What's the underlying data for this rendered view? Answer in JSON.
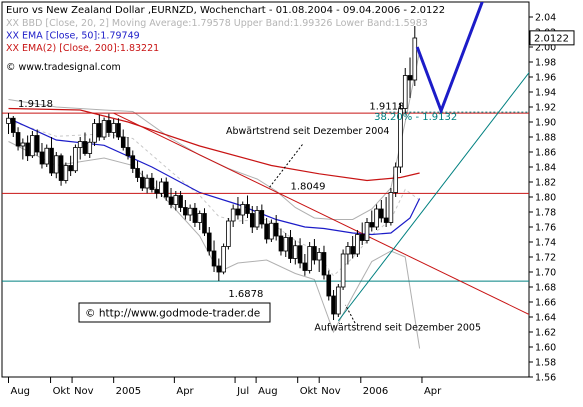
{
  "chart_data": {
    "type": "candlestick",
    "title": "Euro vs New Zealand Dollar ,EURNZD, Wochenchart - 01.08.2004 - 09.04.2006 - 2.0122",
    "legend": [
      {
        "text": "XX BBD [Close, 20, 2] Moving Average:1.79578 Upper Band:1.99326 Lower Band:1.5983",
        "color": "#b4b4b4"
      },
      {
        "text": "XX EMA [Close, 50]:1.79749",
        "color": "#1c1cc8"
      },
      {
        "text": "XX EMA(2) [Close, 200]:1.83221",
        "color": "#c81414"
      }
    ],
    "source_text": "© www.tradesignal.com",
    "watermark_text": "© http://www.godmode-trader.de",
    "price_label": "2.0122",
    "ylim": [
      1.56,
      2.06
    ],
    "yticks": [
      2.04,
      2.02,
      2.0,
      1.98,
      1.96,
      1.94,
      1.92,
      1.9,
      1.88,
      1.86,
      1.84,
      1.82,
      1.8,
      1.78,
      1.76,
      1.74,
      1.72,
      1.7,
      1.68,
      1.66,
      1.64,
      1.62,
      1.6,
      1.58,
      1.56
    ],
    "xticks": [
      {
        "label": "Aug",
        "w": 0
      },
      {
        "label": "Okt",
        "w": 8.8
      },
      {
        "label": "Nov",
        "w": 13.3
      },
      {
        "label": "2005",
        "w": 22
      },
      {
        "label": "Apr",
        "w": 34.7
      },
      {
        "label": "Jul",
        "w": 47.4
      },
      {
        "label": "Aug",
        "w": 51.8
      },
      {
        "label": "Okt",
        "w": 60.5
      },
      {
        "label": "Nov",
        "w": 65
      },
      {
        "label": "2006",
        "w": 73.7
      },
      {
        "label": "Apr",
        "w": 86.5
      }
    ],
    "annotations": [
      {
        "text": "1.9118",
        "w": 2,
        "y": 1.92,
        "color": "#000000"
      },
      {
        "text": "1.9118",
        "w": 75.5,
        "y": 1.917,
        "color": "#000000"
      },
      {
        "text": "38.20% - 1.9132",
        "w": 76.5,
        "y": 1.903,
        "color": "#008080"
      },
      {
        "text": "1.8049",
        "w": 59,
        "y": 1.81,
        "color": "#000000"
      },
      {
        "text": "1.6878",
        "w": 46,
        "y": 1.667,
        "color": "#000000"
      },
      {
        "text": "Abwärtstrend seit Dezember 2004",
        "w": 45.5,
        "y": 1.884,
        "color": "#000000"
      },
      {
        "text": "Aufwärtstrend seit Dezember 2005",
        "w": 64,
        "y": 1.622,
        "color": "#000000"
      }
    ],
    "hlines": [
      {
        "y": 1.9118,
        "color": "#c81414"
      },
      {
        "y": 1.8049,
        "color": "#c81414"
      },
      {
        "y": 1.6878,
        "color": "#008080"
      }
    ],
    "trendlines": [
      {
        "name": "downtrend",
        "color": "#c81414",
        "from": [
          22,
          1.9118
        ],
        "to": [
          110,
          1.64
        ]
      },
      {
        "name": "uptrend",
        "color": "#008080",
        "from": [
          69,
          1.635
        ],
        "to": [
          110,
          1.975
        ]
      }
    ],
    "projection": {
      "color": "#1c1cc8",
      "points": [
        [
          85.5,
          2.0
        ],
        [
          90.5,
          1.915
        ],
        [
          100,
          2.075
        ]
      ]
    },
    "candles": [
      {
        "w": 0,
        "o": 1.898,
        "h": 1.912,
        "l": 1.884,
        "c": 1.905
      },
      {
        "w": 1,
        "o": 1.905,
        "h": 1.908,
        "l": 1.88,
        "c": 1.886
      },
      {
        "w": 2,
        "o": 1.886,
        "h": 1.893,
        "l": 1.862,
        "c": 1.868
      },
      {
        "w": 3,
        "o": 1.868,
        "h": 1.878,
        "l": 1.85,
        "c": 1.872
      },
      {
        "w": 4,
        "o": 1.872,
        "h": 1.882,
        "l": 1.848,
        "c": 1.855
      },
      {
        "w": 5,
        "o": 1.855,
        "h": 1.888,
        "l": 1.852,
        "c": 1.882
      },
      {
        "w": 6,
        "o": 1.882,
        "h": 1.89,
        "l": 1.855,
        "c": 1.86
      },
      {
        "w": 7,
        "o": 1.86,
        "h": 1.872,
        "l": 1.838,
        "c": 1.844
      },
      {
        "w": 8,
        "o": 1.844,
        "h": 1.87,
        "l": 1.84,
        "c": 1.865
      },
      {
        "w": 9,
        "o": 1.865,
        "h": 1.88,
        "l": 1.828,
        "c": 1.832
      },
      {
        "w": 10,
        "o": 1.832,
        "h": 1.86,
        "l": 1.825,
        "c": 1.855
      },
      {
        "w": 11,
        "o": 1.855,
        "h": 1.858,
        "l": 1.815,
        "c": 1.822
      },
      {
        "w": 12,
        "o": 1.822,
        "h": 1.846,
        "l": 1.818,
        "c": 1.842
      },
      {
        "w": 13,
        "o": 1.842,
        "h": 1.855,
        "l": 1.828,
        "c": 1.835
      },
      {
        "w": 14,
        "o": 1.835,
        "h": 1.87,
        "l": 1.832,
        "c": 1.866
      },
      {
        "w": 15,
        "o": 1.866,
        "h": 1.88,
        "l": 1.85,
        "c": 1.874
      },
      {
        "w": 16,
        "o": 1.874,
        "h": 1.886,
        "l": 1.855,
        "c": 1.858
      },
      {
        "w": 17,
        "o": 1.858,
        "h": 1.878,
        "l": 1.852,
        "c": 1.873
      },
      {
        "w": 18,
        "o": 1.873,
        "h": 1.904,
        "l": 1.868,
        "c": 1.898
      },
      {
        "w": 19,
        "o": 1.898,
        "h": 1.91,
        "l": 1.875,
        "c": 1.88
      },
      {
        "w": 20,
        "o": 1.88,
        "h": 1.906,
        "l": 1.876,
        "c": 1.902
      },
      {
        "w": 21,
        "o": 1.902,
        "h": 1.911,
        "l": 1.88,
        "c": 1.886
      },
      {
        "w": 22,
        "o": 1.886,
        "h": 1.904,
        "l": 1.878,
        "c": 1.898
      },
      {
        "w": 23,
        "o": 1.898,
        "h": 1.905,
        "l": 1.876,
        "c": 1.88
      },
      {
        "w": 24,
        "o": 1.88,
        "h": 1.89,
        "l": 1.862,
        "c": 1.866
      },
      {
        "w": 25,
        "o": 1.866,
        "h": 1.88,
        "l": 1.85,
        "c": 1.855
      },
      {
        "w": 26,
        "o": 1.855,
        "h": 1.862,
        "l": 1.832,
        "c": 1.838
      },
      {
        "w": 27,
        "o": 1.838,
        "h": 1.848,
        "l": 1.82,
        "c": 1.826
      },
      {
        "w": 28,
        "o": 1.826,
        "h": 1.835,
        "l": 1.808,
        "c": 1.812
      },
      {
        "w": 29,
        "o": 1.812,
        "h": 1.83,
        "l": 1.805,
        "c": 1.825
      },
      {
        "w": 30,
        "o": 1.825,
        "h": 1.832,
        "l": 1.806,
        "c": 1.81
      },
      {
        "w": 31,
        "o": 1.81,
        "h": 1.822,
        "l": 1.798,
        "c": 1.805
      },
      {
        "w": 32,
        "o": 1.805,
        "h": 1.825,
        "l": 1.8,
        "c": 1.82
      },
      {
        "w": 33,
        "o": 1.82,
        "h": 1.826,
        "l": 1.795,
        "c": 1.8
      },
      {
        "w": 34,
        "o": 1.8,
        "h": 1.812,
        "l": 1.785,
        "c": 1.79
      },
      {
        "w": 35,
        "o": 1.79,
        "h": 1.808,
        "l": 1.782,
        "c": 1.802
      },
      {
        "w": 36,
        "o": 1.802,
        "h": 1.808,
        "l": 1.78,
        "c": 1.786
      },
      {
        "w": 37,
        "o": 1.786,
        "h": 1.796,
        "l": 1.77,
        "c": 1.776
      },
      {
        "w": 38,
        "o": 1.776,
        "h": 1.79,
        "l": 1.768,
        "c": 1.785
      },
      {
        "w": 39,
        "o": 1.785,
        "h": 1.792,
        "l": 1.76,
        "c": 1.766
      },
      {
        "w": 40,
        "o": 1.766,
        "h": 1.782,
        "l": 1.756,
        "c": 1.778
      },
      {
        "w": 41,
        "o": 1.778,
        "h": 1.785,
        "l": 1.748,
        "c": 1.752
      },
      {
        "w": 42,
        "o": 1.752,
        "h": 1.76,
        "l": 1.722,
        "c": 1.728
      },
      {
        "w": 43,
        "o": 1.728,
        "h": 1.742,
        "l": 1.7,
        "c": 1.708
      },
      {
        "w": 44,
        "o": 1.708,
        "h": 1.718,
        "l": 1.688,
        "c": 1.7
      },
      {
        "w": 45,
        "o": 1.7,
        "h": 1.738,
        "l": 1.697,
        "c": 1.734
      },
      {
        "w": 46,
        "o": 1.734,
        "h": 1.772,
        "l": 1.73,
        "c": 1.768
      },
      {
        "w": 47,
        "o": 1.768,
        "h": 1.79,
        "l": 1.76,
        "c": 1.784
      },
      {
        "w": 48,
        "o": 1.784,
        "h": 1.8,
        "l": 1.77,
        "c": 1.776
      },
      {
        "w": 49,
        "o": 1.776,
        "h": 1.794,
        "l": 1.764,
        "c": 1.79
      },
      {
        "w": 50,
        "o": 1.79,
        "h": 1.802,
        "l": 1.772,
        "c": 1.778
      },
      {
        "w": 51,
        "o": 1.778,
        "h": 1.788,
        "l": 1.752,
        "c": 1.76
      },
      {
        "w": 52,
        "o": 1.76,
        "h": 1.788,
        "l": 1.756,
        "c": 1.782
      },
      {
        "w": 53,
        "o": 1.782,
        "h": 1.79,
        "l": 1.758,
        "c": 1.764
      },
      {
        "w": 54,
        "o": 1.764,
        "h": 1.772,
        "l": 1.738,
        "c": 1.744
      },
      {
        "w": 55,
        "o": 1.744,
        "h": 1.77,
        "l": 1.74,
        "c": 1.765
      },
      {
        "w": 56,
        "o": 1.765,
        "h": 1.776,
        "l": 1.742,
        "c": 1.748
      },
      {
        "w": 57,
        "o": 1.748,
        "h": 1.758,
        "l": 1.722,
        "c": 1.728
      },
      {
        "w": 58,
        "o": 1.728,
        "h": 1.752,
        "l": 1.72,
        "c": 1.746
      },
      {
        "w": 59,
        "o": 1.746,
        "h": 1.756,
        "l": 1.712,
        "c": 1.718
      },
      {
        "w": 60,
        "o": 1.718,
        "h": 1.742,
        "l": 1.71,
        "c": 1.735
      },
      {
        "w": 61,
        "o": 1.735,
        "h": 1.745,
        "l": 1.705,
        "c": 1.712
      },
      {
        "w": 62,
        "o": 1.712,
        "h": 1.724,
        "l": 1.695,
        "c": 1.702
      },
      {
        "w": 63,
        "o": 1.702,
        "h": 1.74,
        "l": 1.698,
        "c": 1.734
      },
      {
        "w": 64,
        "o": 1.734,
        "h": 1.744,
        "l": 1.71,
        "c": 1.716
      },
      {
        "w": 65,
        "o": 1.716,
        "h": 1.732,
        "l": 1.7,
        "c": 1.726
      },
      {
        "w": 66,
        "o": 1.726,
        "h": 1.735,
        "l": 1.69,
        "c": 1.696
      },
      {
        "w": 67,
        "o": 1.696,
        "h": 1.702,
        "l": 1.662,
        "c": 1.668
      },
      {
        "w": 68,
        "o": 1.668,
        "h": 1.676,
        "l": 1.636,
        "c": 1.644
      },
      {
        "w": 69,
        "o": 1.644,
        "h": 1.684,
        "l": 1.64,
        "c": 1.68
      },
      {
        "w": 70,
        "o": 1.68,
        "h": 1.73,
        "l": 1.676,
        "c": 1.724
      },
      {
        "w": 71,
        "o": 1.724,
        "h": 1.74,
        "l": 1.71,
        "c": 1.734
      },
      {
        "w": 72,
        "o": 1.734,
        "h": 1.748,
        "l": 1.718,
        "c": 1.724
      },
      {
        "w": 73,
        "o": 1.724,
        "h": 1.756,
        "l": 1.72,
        "c": 1.75
      },
      {
        "w": 74,
        "o": 1.75,
        "h": 1.766,
        "l": 1.736,
        "c": 1.742
      },
      {
        "w": 75,
        "o": 1.742,
        "h": 1.772,
        "l": 1.738,
        "c": 1.766
      },
      {
        "w": 76,
        "o": 1.766,
        "h": 1.782,
        "l": 1.754,
        "c": 1.76
      },
      {
        "w": 77,
        "o": 1.76,
        "h": 1.79,
        "l": 1.756,
        "c": 1.784
      },
      {
        "w": 78,
        "o": 1.784,
        "h": 1.796,
        "l": 1.766,
        "c": 1.772
      },
      {
        "w": 79,
        "o": 1.772,
        "h": 1.8,
        "l": 1.76,
        "c": 1.766
      },
      {
        "w": 80,
        "o": 1.766,
        "h": 1.812,
        "l": 1.762,
        "c": 1.806
      },
      {
        "w": 81,
        "o": 1.806,
        "h": 1.846,
        "l": 1.8,
        "c": 1.84
      },
      {
        "w": 82,
        "o": 1.84,
        "h": 1.925,
        "l": 1.832,
        "c": 1.918
      },
      {
        "w": 83,
        "o": 1.918,
        "h": 1.972,
        "l": 1.91,
        "c": 1.962
      },
      {
        "w": 84,
        "o": 1.962,
        "h": 1.986,
        "l": 1.932,
        "c": 1.956
      },
      {
        "w": 85,
        "o": 1.956,
        "h": 2.028,
        "l": 1.948,
        "c": 2.012
      }
    ],
    "ema50": [
      [
        0,
        1.905
      ],
      [
        10,
        1.876
      ],
      [
        20,
        1.869
      ],
      [
        30,
        1.84
      ],
      [
        40,
        1.806
      ],
      [
        48,
        1.79
      ],
      [
        56,
        1.77
      ],
      [
        62,
        1.76
      ],
      [
        66,
        1.758
      ],
      [
        72,
        1.752
      ],
      [
        76,
        1.75
      ],
      [
        80,
        1.752
      ],
      [
        84,
        1.772
      ],
      [
        86,
        1.798
      ]
    ],
    "ema200": [
      [
        0,
        1.918
      ],
      [
        15,
        1.916
      ],
      [
        25,
        1.9
      ],
      [
        40,
        1.868
      ],
      [
        55,
        1.842
      ],
      [
        65,
        1.831
      ],
      [
        75,
        1.822
      ],
      [
        82,
        1.826
      ],
      [
        86,
        1.832
      ]
    ],
    "bb_upper": [
      [
        0,
        1.93
      ],
      [
        10,
        1.92
      ],
      [
        20,
        1.916
      ],
      [
        26,
        1.914
      ],
      [
        34,
        1.878
      ],
      [
        40,
        1.856
      ],
      [
        46,
        1.838
      ],
      [
        52,
        1.824
      ],
      [
        56,
        1.808
      ],
      [
        60,
        1.786
      ],
      [
        64,
        1.772
      ],
      [
        68,
        1.77
      ],
      [
        72,
        1.77
      ],
      [
        76,
        1.784
      ],
      [
        80,
        1.812
      ],
      [
        83,
        1.9
      ],
      [
        86,
        1.994
      ]
    ],
    "bb_lower": [
      [
        0,
        1.874
      ],
      [
        10,
        1.842
      ],
      [
        20,
        1.852
      ],
      [
        26,
        1.842
      ],
      [
        34,
        1.79
      ],
      [
        40,
        1.748
      ],
      [
        44,
        1.7
      ],
      [
        48,
        1.712
      ],
      [
        54,
        1.716
      ],
      [
        60,
        1.698
      ],
      [
        64,
        1.69
      ],
      [
        68,
        1.62
      ],
      [
        72,
        1.668
      ],
      [
        76,
        1.714
      ],
      [
        80,
        1.728
      ],
      [
        83,
        1.72
      ],
      [
        86,
        1.598
      ]
    ],
    "bb_mid": [
      [
        0,
        1.902
      ],
      [
        10,
        1.881
      ],
      [
        20,
        1.884
      ],
      [
        26,
        1.878
      ],
      [
        34,
        1.834
      ],
      [
        40,
        1.802
      ],
      [
        44,
        1.774
      ],
      [
        48,
        1.768
      ],
      [
        54,
        1.77
      ],
      [
        60,
        1.742
      ],
      [
        64,
        1.73
      ],
      [
        68,
        1.695
      ],
      [
        72,
        1.719
      ],
      [
        76,
        1.749
      ],
      [
        80,
        1.77
      ],
      [
        83,
        1.81
      ],
      [
        86,
        1.796
      ]
    ]
  }
}
